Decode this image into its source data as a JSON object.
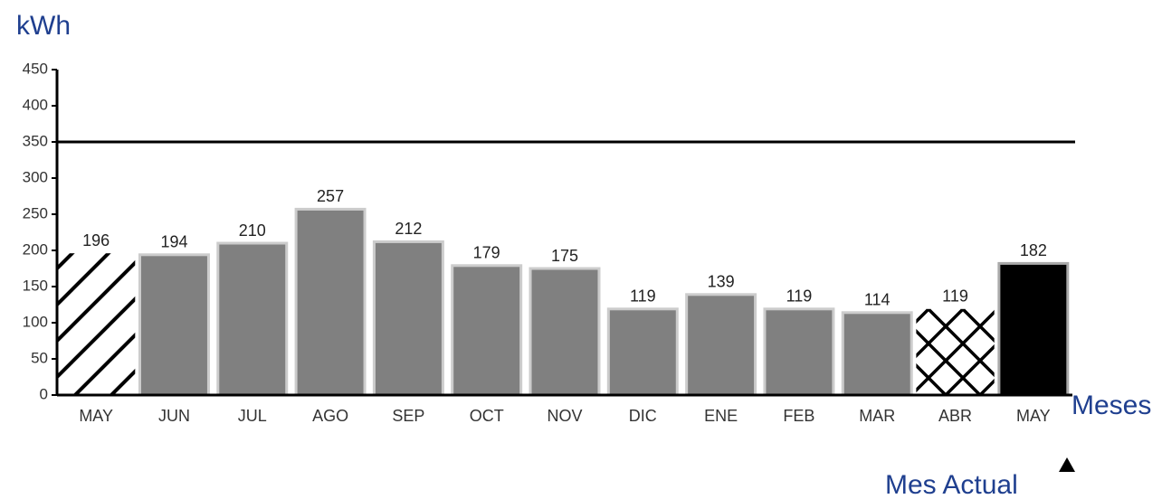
{
  "chart_data": {
    "type": "bar",
    "y_label": "kWh",
    "x_label": "Meses",
    "annotation": "Mes Actual",
    "categories": [
      "MAY",
      "JUN",
      "JUL",
      "AGO",
      "SEP",
      "OCT",
      "NOV",
      "DIC",
      "ENE",
      "FEB",
      "MAR",
      "ABR",
      "MAY"
    ],
    "values": [
      196,
      194,
      210,
      257,
      212,
      179,
      175,
      119,
      139,
      119,
      114,
      119,
      182
    ],
    "colors": [
      "#ffffff",
      "#808080",
      "#808080",
      "#808080",
      "#808080",
      "#808080",
      "#808080",
      "#808080",
      "#808080",
      "#808080",
      "#808080",
      "#ffffff",
      "#000000"
    ],
    "patterns": [
      "diagonal",
      null,
      null,
      null,
      null,
      null,
      null,
      null,
      null,
      null,
      null,
      "crosshatch",
      null
    ],
    "reference_line": 350,
    "ylim": [
      0,
      450
    ],
    "yticks": [
      0,
      50,
      100,
      150,
      200,
      250,
      300,
      350,
      400,
      450
    ]
  }
}
